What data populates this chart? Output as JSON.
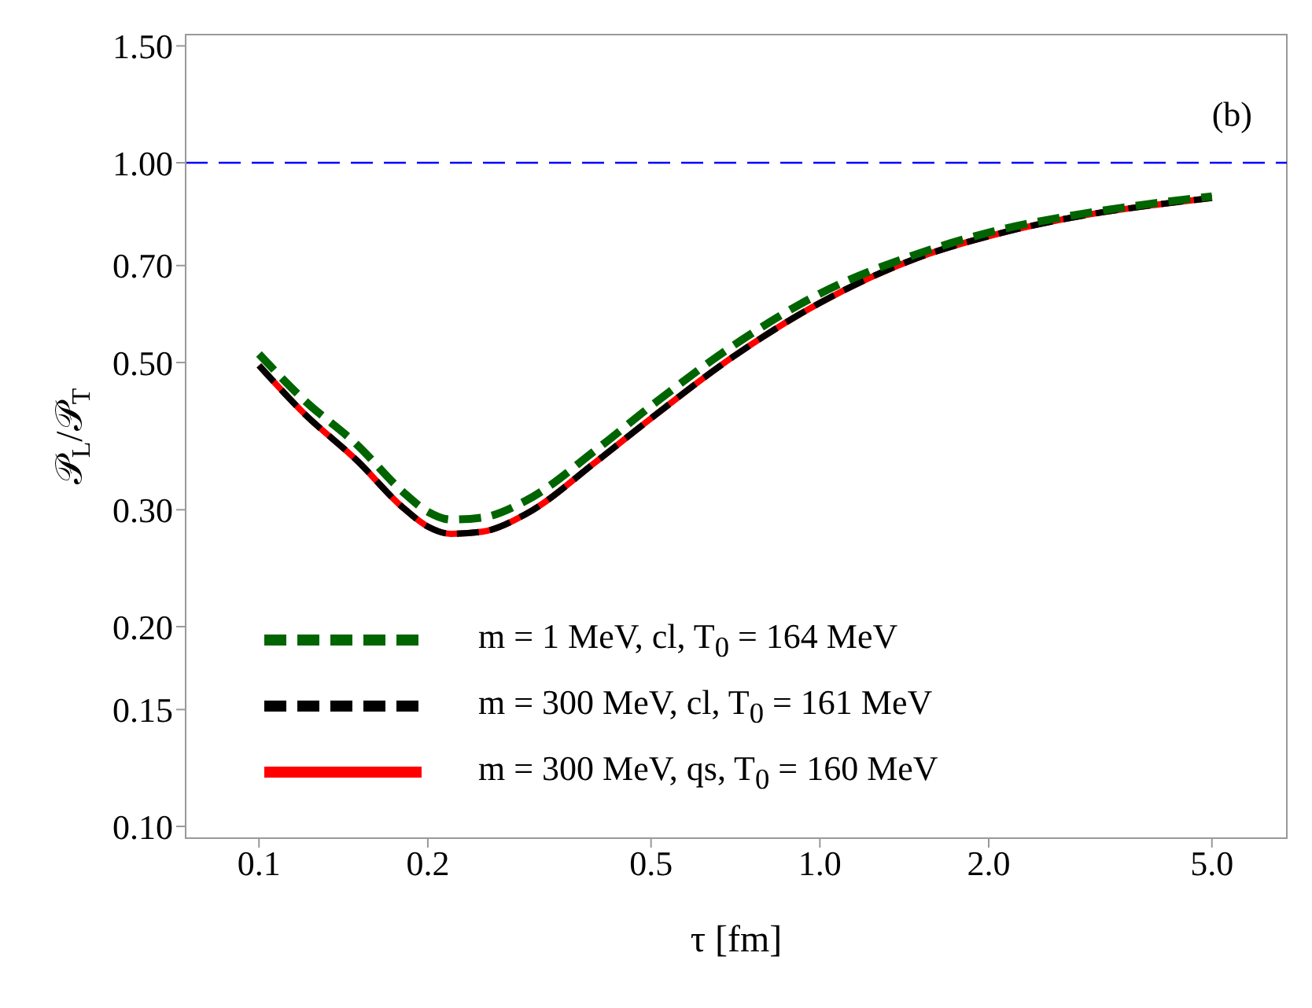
{
  "chart_data": {
    "type": "line",
    "xlabel": "τ [fm]",
    "ylabel": "𝒫$_{L}$/𝒫$_{T}$",
    "log": "xy",
    "legend": "bottom left",
    "marker": "none",
    "annotations": [
      "(b)"
    ],
    "x": [
      0.1,
      0.12,
      0.15,
      0.18,
      0.2,
      0.22,
      0.25,
      0.3,
      0.4,
      0.5,
      0.7,
      1.0,
      1.5,
      2.0,
      3.0,
      4.0,
      5.0
    ],
    "xlim": [
      0.074,
      6.8
    ],
    "xticks": [
      {
        "value": 0.1,
        "label": "0.1"
      },
      {
        "value": 0.2,
        "label": "0.2"
      },
      {
        "value": 0.5,
        "label": "0.5"
      },
      {
        "value": 1,
        "label": "1.0"
      },
      {
        "value": 2,
        "label": "2.0"
      },
      {
        "value": 5,
        "label": "5.0"
      }
    ],
    "ylim": [
      0.096,
      1.56
    ],
    "yticks": [
      {
        "value": 0.1,
        "label": "0.10"
      },
      {
        "value": 0.15,
        "label": "0.15"
      },
      {
        "value": 0.2,
        "label": "0.20"
      },
      {
        "value": 0.3,
        "label": "0.30"
      },
      {
        "value": 0.5,
        "label": "0.50"
      },
      {
        "value": 0.7,
        "label": "0.70"
      },
      {
        "value": 1,
        "label": "1.00"
      },
      {
        "value": 1.5,
        "label": "1.50"
      }
    ],
    "ref_lines": [
      {
        "axis": "y",
        "value": 1,
        "color": "#0000ff",
        "line_style": "dashed"
      }
    ],
    "series": [
      {
        "name": "m = 1 MeV, cl, T$_{0}$ = 164 MeV",
        "color": "#006400",
        "line_style": "dashed",
        "values": [
          0.515,
          0.44,
          0.375,
          0.32,
          0.298,
          0.29,
          0.292,
          0.31,
          0.37,
          0.43,
          0.53,
          0.635,
          0.73,
          0.785,
          0.84,
          0.87,
          0.89
        ]
      },
      {
        "name": "m = 300 MeV, cl, T$_{0}$ = 161 MeV",
        "color": "#000000",
        "line_style": "dashed",
        "values": [
          0.495,
          0.42,
          0.355,
          0.303,
          0.283,
          0.276,
          0.278,
          0.296,
          0.355,
          0.412,
          0.51,
          0.615,
          0.72,
          0.775,
          0.835,
          0.865,
          0.885
        ]
      },
      {
        "name": "m = 300 MeV, qs, T$_{0}$ = 160 MeV",
        "color": "#ff0000",
        "line_style": "solid",
        "values": [
          0.495,
          0.42,
          0.355,
          0.303,
          0.283,
          0.276,
          0.278,
          0.296,
          0.355,
          0.412,
          0.51,
          0.615,
          0.72,
          0.775,
          0.835,
          0.865,
          0.885
        ]
      }
    ]
  }
}
